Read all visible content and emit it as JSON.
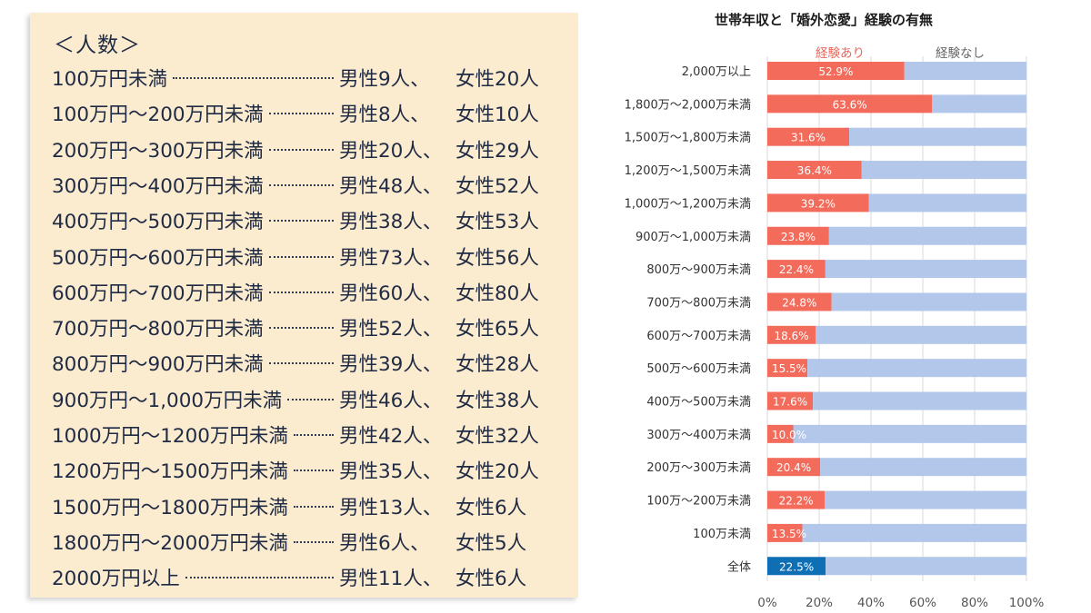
{
  "table": {
    "title": "＜人数＞",
    "rows": [
      {
        "range": "100万円未満",
        "male": "男性9人、",
        "female": "女性20人"
      },
      {
        "range": "100万円～200万円未満",
        "male": "男性8人、",
        "female": "女性10人"
      },
      {
        "range": "200万円～300万円未満",
        "male": "男性20人、",
        "female": "女性29人"
      },
      {
        "range": "300万円～400万円未満",
        "male": "男性48人、",
        "female": "女性52人"
      },
      {
        "range": "400万円～500万円未満",
        "male": "男性38人、",
        "female": "女性53人"
      },
      {
        "range": "500万円～600万円未満",
        "male": "男性73人、",
        "female": "女性56人"
      },
      {
        "range": "600万円～700万円未満",
        "male": "男性60人、",
        "female": "女性80人"
      },
      {
        "range": "700万円～800万円未満",
        "male": "男性52人、",
        "female": "女性65人"
      },
      {
        "range": "800万円～900万円未満",
        "male": "男性39人、",
        "female": "女性28人"
      },
      {
        "range": "900万円～1,000万円未満",
        "male": "男性46人、",
        "female": "女性38人"
      },
      {
        "range": "1000万円～1200万円未満",
        "male": "男性42人、",
        "female": "女性32人"
      },
      {
        "range": "1200万円～1500万円未満",
        "male": "男性35人、",
        "female": "女性20人"
      },
      {
        "range": "1500万円～1800万円未満",
        "male": "男性13人、",
        "female": "女性6人"
      },
      {
        "range": "1800万円～2000万円未満",
        "male": "男性6人、",
        "female": "女性5人"
      },
      {
        "range": "2000万円以上",
        "male": "男性11人、",
        "female": "女性6人"
      }
    ]
  },
  "chart_data": {
    "type": "bar",
    "orientation": "horizontal",
    "stacked": true,
    "title": "世帯年収と「婚外恋愛」経験の有無",
    "categories": [
      "2,000万以上",
      "1,800万～2,000万未満",
      "1,500万～1,800万未満",
      "1,200万～1,500万未満",
      "1,000万～1,200万未満",
      "900万～1,000万未満",
      "800万～900万未満",
      "700万～800万未満",
      "600万～700万未満",
      "500万～600万未満",
      "400万～500万未満",
      "300万～400万未満",
      "200万～300万未満",
      "100万～200万未満",
      "100万未満",
      "全体"
    ],
    "series": [
      {
        "name": "経験あり",
        "color": "#f26b5b",
        "highlight_color": "#0f6fb5",
        "values": [
          52.9,
          63.6,
          31.6,
          36.4,
          39.2,
          23.8,
          22.4,
          24.8,
          18.6,
          15.5,
          17.6,
          10.0,
          20.4,
          22.2,
          13.5,
          22.5
        ]
      },
      {
        "name": "経験なし",
        "color": "#b2c7ea",
        "values": [
          47.1,
          36.4,
          68.4,
          63.6,
          60.8,
          76.2,
          77.6,
          75.2,
          81.4,
          84.5,
          82.4,
          90.0,
          79.6,
          77.8,
          86.5,
          77.5
        ]
      }
    ],
    "data_labels": [
      "52.9%",
      "63.6%",
      "31.6%",
      "36.4%",
      "39.2%",
      "23.8%",
      "22.4%",
      "24.8%",
      "18.6%",
      "15.5%",
      "17.6%",
      "10.0%",
      "20.4%",
      "22.2%",
      "13.5%",
      "22.5%"
    ],
    "xlim": [
      0,
      100
    ],
    "x_ticks": [
      "0%",
      "20%",
      "40%",
      "60%",
      "80%",
      "100%"
    ],
    "grid": true,
    "legend": "top"
  }
}
